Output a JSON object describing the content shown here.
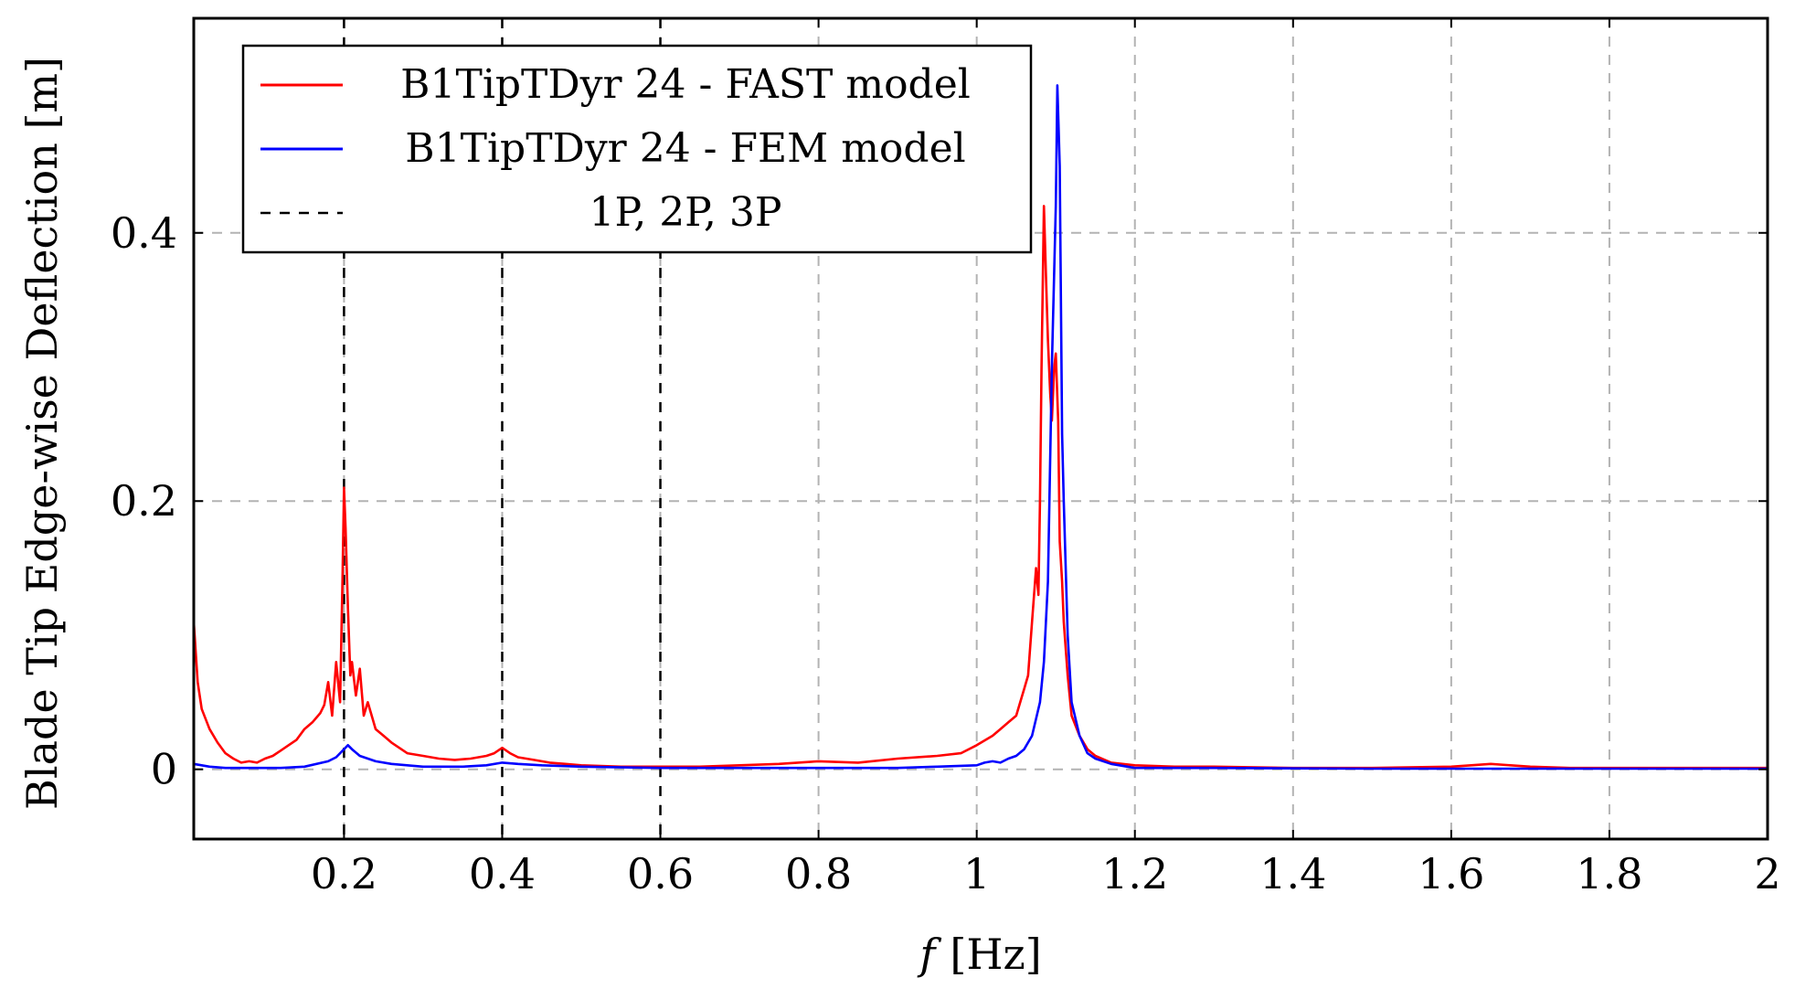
{
  "chart_data": {
    "type": "line",
    "title": "",
    "xlabel_var": "f",
    "xlabel_unit": "[Hz]",
    "ylabel": "Blade Tip Edge-wise Deflection [m]",
    "xlim": [
      0.01,
      2.0
    ],
    "ylim": [
      -0.052,
      0.56
    ],
    "grid": true,
    "legend_position": "top-left",
    "xticks": [
      0.2,
      0.4,
      0.6,
      0.8,
      1.0,
      1.2,
      1.4,
      1.6,
      1.8,
      2.0
    ],
    "xtick_labels": [
      "0.2",
      "0.4",
      "0.6",
      "0.8",
      "1",
      "1.2",
      "1.4",
      "1.6",
      "1.8",
      "2"
    ],
    "yticks": [
      0,
      0.2,
      0.4
    ],
    "ytick_labels": [
      "0",
      "0.2",
      "0.4"
    ],
    "vlines": {
      "name": "1P, 2P, 3P",
      "x": [
        0.2,
        0.4,
        0.6
      ],
      "color": "#000000",
      "style": "dashed"
    },
    "series": [
      {
        "name": "B1TipTDyr 24 - FAST model",
        "color": "#ff0000",
        "x": [
          0.01,
          0.015,
          0.02,
          0.03,
          0.04,
          0.05,
          0.06,
          0.07,
          0.08,
          0.09,
          0.1,
          0.11,
          0.12,
          0.13,
          0.14,
          0.15,
          0.16,
          0.17,
          0.175,
          0.18,
          0.185,
          0.19,
          0.195,
          0.198,
          0.2,
          0.202,
          0.205,
          0.208,
          0.21,
          0.215,
          0.22,
          0.225,
          0.23,
          0.24,
          0.25,
          0.26,
          0.28,
          0.3,
          0.32,
          0.34,
          0.36,
          0.38,
          0.39,
          0.4,
          0.41,
          0.42,
          0.44,
          0.46,
          0.48,
          0.5,
          0.55,
          0.6,
          0.65,
          0.7,
          0.75,
          0.8,
          0.85,
          0.9,
          0.95,
          0.98,
          1.0,
          1.02,
          1.03,
          1.04,
          1.05,
          1.06,
          1.065,
          1.07,
          1.075,
          1.078,
          1.08,
          1.082,
          1.085,
          1.088,
          1.09,
          1.093,
          1.095,
          1.098,
          1.1,
          1.103,
          1.105,
          1.108,
          1.11,
          1.115,
          1.12,
          1.13,
          1.14,
          1.15,
          1.17,
          1.2,
          1.25,
          1.3,
          1.4,
          1.5,
          1.6,
          1.65,
          1.7,
          1.75,
          1.8,
          1.9,
          2.0
        ],
        "y": [
          0.11,
          0.065,
          0.045,
          0.03,
          0.02,
          0.012,
          0.008,
          0.005,
          0.006,
          0.005,
          0.008,
          0.01,
          0.014,
          0.018,
          0.022,
          0.03,
          0.035,
          0.042,
          0.048,
          0.065,
          0.04,
          0.08,
          0.05,
          0.14,
          0.21,
          0.18,
          0.12,
          0.07,
          0.08,
          0.055,
          0.075,
          0.04,
          0.05,
          0.03,
          0.025,
          0.02,
          0.012,
          0.01,
          0.008,
          0.007,
          0.008,
          0.01,
          0.012,
          0.016,
          0.012,
          0.009,
          0.007,
          0.005,
          0.004,
          0.003,
          0.002,
          0.002,
          0.002,
          0.003,
          0.004,
          0.006,
          0.005,
          0.008,
          0.01,
          0.012,
          0.018,
          0.025,
          0.03,
          0.035,
          0.04,
          0.06,
          0.07,
          0.11,
          0.15,
          0.13,
          0.2,
          0.3,
          0.42,
          0.36,
          0.32,
          0.28,
          0.26,
          0.3,
          0.31,
          0.26,
          0.17,
          0.14,
          0.11,
          0.07,
          0.04,
          0.025,
          0.015,
          0.01,
          0.005,
          0.003,
          0.002,
          0.002,
          0.001,
          0.001,
          0.002,
          0.004,
          0.002,
          0.001,
          0.001,
          0.001,
          0.001
        ]
      },
      {
        "name": "B1TipTDyr 24 - FEM model",
        "color": "#0000ff",
        "x": [
          0.01,
          0.03,
          0.05,
          0.08,
          0.1,
          0.12,
          0.15,
          0.18,
          0.19,
          0.2,
          0.205,
          0.21,
          0.22,
          0.24,
          0.26,
          0.3,
          0.35,
          0.38,
          0.4,
          0.42,
          0.45,
          0.5,
          0.6,
          0.7,
          0.8,
          0.9,
          0.95,
          1.0,
          1.01,
          1.02,
          1.03,
          1.04,
          1.05,
          1.06,
          1.07,
          1.08,
          1.085,
          1.09,
          1.095,
          1.1,
          1.102,
          1.105,
          1.108,
          1.11,
          1.115,
          1.12,
          1.13,
          1.14,
          1.15,
          1.17,
          1.2,
          1.3,
          1.5,
          1.7,
          2.0
        ],
        "y": [
          0.004,
          0.002,
          0.001,
          0.001,
          0.001,
          0.001,
          0.002,
          0.006,
          0.009,
          0.015,
          0.018,
          0.015,
          0.01,
          0.006,
          0.004,
          0.002,
          0.002,
          0.003,
          0.005,
          0.004,
          0.003,
          0.002,
          0.001,
          0.001,
          0.001,
          0.001,
          0.002,
          0.003,
          0.005,
          0.006,
          0.005,
          0.008,
          0.01,
          0.015,
          0.025,
          0.05,
          0.08,
          0.14,
          0.3,
          0.42,
          0.51,
          0.45,
          0.25,
          0.2,
          0.1,
          0.05,
          0.025,
          0.012,
          0.008,
          0.004,
          0.001,
          0.001,
          0.0005,
          0.0005,
          0.0005
        ]
      }
    ]
  }
}
